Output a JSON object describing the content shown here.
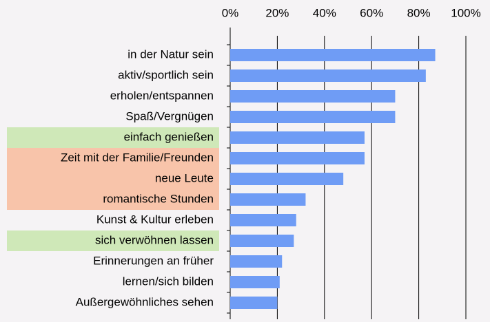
{
  "chart_data": {
    "type": "bar",
    "orientation": "horizontal",
    "categories": [
      "in der Natur sein",
      "aktiv/sportlich sein",
      "erholen/entspannen",
      "Spaß/Vergnügen",
      "einfach genießen",
      "Zeit mit der Familie/Freunden",
      "neue Leute",
      "romantische Stunden",
      "Kunst & Kultur erleben",
      "sich verwöhnen lassen",
      "Erinnerungen an früher",
      "lernen/sich bilden",
      "Außergewöhnliches sehen"
    ],
    "values": [
      87,
      83,
      70,
      70,
      57,
      57,
      48,
      32,
      28,
      27,
      22,
      21,
      20
    ],
    "color": "#6f9cf5",
    "label_backgrounds": [
      null,
      null,
      null,
      null,
      "#cfe8b8",
      "#f8c4aa",
      "#f8c4aa",
      "#f8c4aa",
      null,
      "#cfe8b8",
      null,
      null,
      null
    ],
    "xlim": [
      0,
      100
    ],
    "xticks": [
      {
        "value": 0,
        "label": "0%"
      },
      {
        "value": 20,
        "label": "20%"
      },
      {
        "value": 40,
        "label": "40%"
      },
      {
        "value": 60,
        "label": "60%"
      },
      {
        "value": 80,
        "label": "80%"
      },
      {
        "value": 100,
        "label": "100%"
      }
    ],
    "grid": true
  }
}
